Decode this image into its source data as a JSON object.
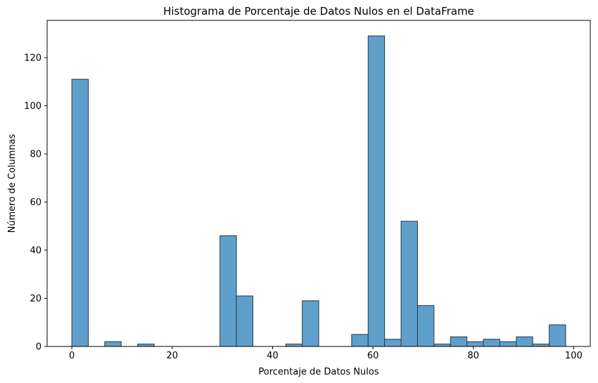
{
  "chart_data": {
    "type": "bar",
    "title": "Histograma de Porcentaje de Datos Nulos en el DataFrame",
    "xlabel": "Porcentaje de Datos Nulos",
    "ylabel": "Número de Columnas",
    "xlim": [
      -4.92,
      103.3
    ],
    "ylim": [
      0,
      135.45
    ],
    "x_ticks": [
      0,
      20,
      40,
      60,
      80,
      100
    ],
    "y_ticks": [
      0,
      20,
      40,
      60,
      80,
      100,
      120
    ],
    "bin_start": 0,
    "bin_width": 3.28,
    "counts": [
      111,
      0,
      2,
      0,
      1,
      0,
      0,
      0,
      0,
      46,
      21,
      0,
      0,
      1,
      19,
      0,
      0,
      5,
      129,
      3,
      52,
      17,
      1,
      4,
      2,
      3,
      2,
      4,
      1,
      9
    ],
    "grid": false,
    "bar_color": "#5f9fcb",
    "edge_color": "#2a3a48"
  }
}
